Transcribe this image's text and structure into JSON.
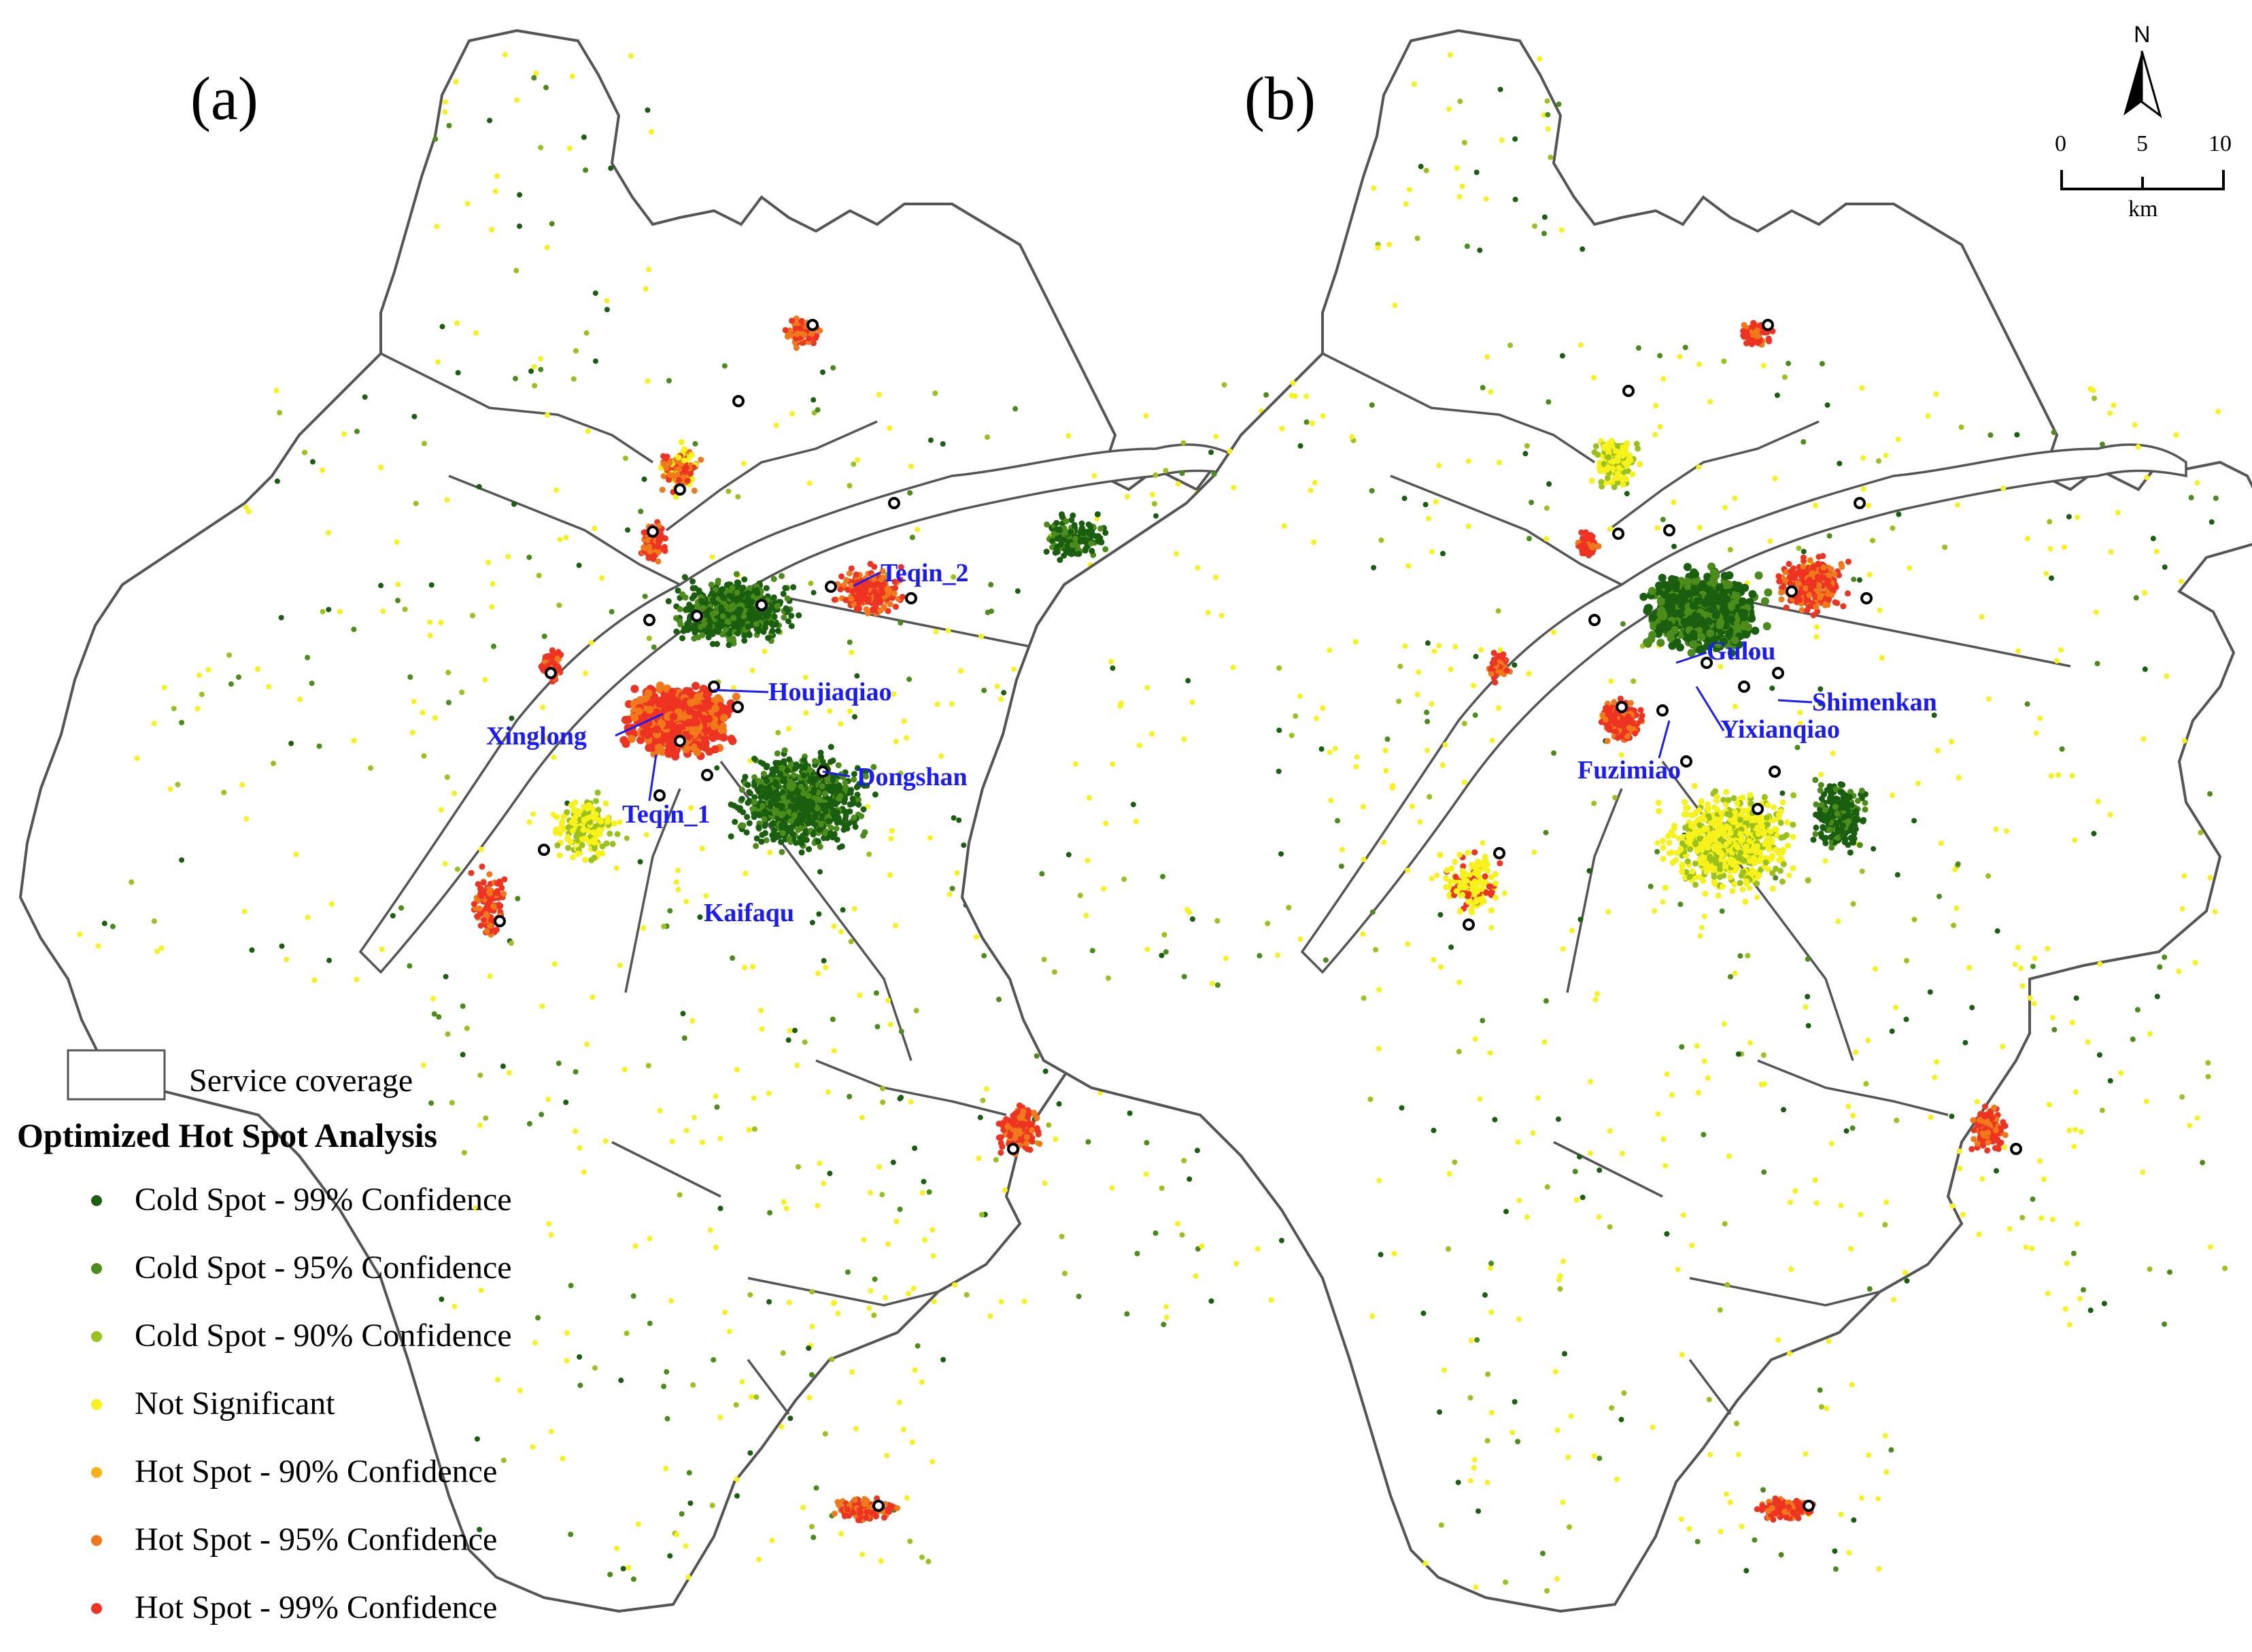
{
  "panels": [
    {
      "id": "a",
      "label": "(a)",
      "stations": [
        "Teqin_2",
        "Houjiaqiao",
        "Xinglong",
        "Dongshan",
        "Teqin_1",
        "Kaifaqu"
      ]
    },
    {
      "id": "b",
      "label": "(b)",
      "stations": [
        "Gulou",
        "Shimenkan",
        "Yixianqiao",
        "Fuzimiao"
      ]
    }
  ],
  "legend": {
    "boundary_label": "Service coverage",
    "title": "Optimized Hot Spot Analysis",
    "classes": [
      {
        "label": "Cold Spot - 99% Confidence",
        "color": "#1a5e0f"
      },
      {
        "label": "Cold Spot - 95% Confidence",
        "color": "#4c8c1a"
      },
      {
        "label": "Cold Spot - 90% Confidence",
        "color": "#9bc21c"
      },
      {
        "label": "Not Significant",
        "color": "#f7f21a"
      },
      {
        "label": "Hot Spot - 90% Confidence",
        "color": "#f5b21a"
      },
      {
        "label": "Hot Spot - 95% Confidence",
        "color": "#f07a1a"
      },
      {
        "label": "Hot Spot - 99% Confidence",
        "color": "#ee3322"
      }
    ]
  },
  "north_arrow": {
    "label": "N",
    "icon": "north-arrow-icon"
  },
  "scale_bar": {
    "ticks": [
      "0",
      "5",
      "10"
    ],
    "unit": "km"
  }
}
